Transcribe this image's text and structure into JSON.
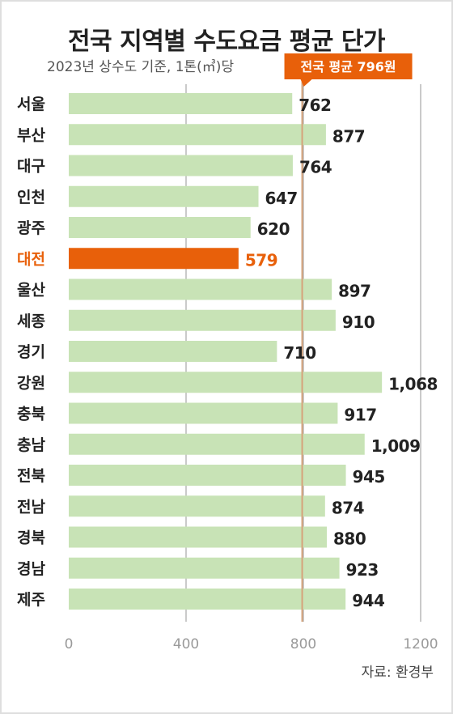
{
  "header": {
    "title": "전국 지역별 수도요금 평균 단가",
    "subtitle": "2023년 상수도 기준, 1톤(㎥)당"
  },
  "footer": {
    "source": "자료: 환경부"
  },
  "colors": {
    "bar": "#c8e3b6",
    "highlight_bar": "#e8600a",
    "highlight_text": "#e8600a",
    "average_line": "#d6a27a",
    "callout_bg": "#e8600a",
    "grid": "#b8b8b8"
  },
  "chart_data": {
    "type": "bar",
    "orientation": "horizontal",
    "title": "전국 지역별 수도요금 평균 단가",
    "subtitle": "2023년 상수도 기준, 1톤(㎥)당",
    "categories": [
      "서울",
      "부산",
      "대구",
      "인천",
      "광주",
      "대전",
      "울산",
      "세종",
      "경기",
      "강원",
      "충북",
      "충남",
      "전북",
      "전남",
      "경북",
      "경남",
      "제주"
    ],
    "values": [
      762,
      877,
      764,
      647,
      620,
      579,
      897,
      910,
      710,
      1068,
      917,
      1009,
      945,
      874,
      880,
      923,
      944
    ],
    "value_labels": [
      "762",
      "877",
      "764",
      "647",
      "620",
      "579",
      "897",
      "910",
      "710",
      "1,068",
      "917",
      "1,009",
      "945",
      "874",
      "880",
      "923",
      "944"
    ],
    "highlight": "대전",
    "average": {
      "value": 796,
      "label": "전국 평균 796원"
    },
    "xlim": [
      0,
      1200
    ],
    "xticks": [
      0,
      400,
      800,
      1200
    ],
    "xtick_labels": [
      "0",
      "400",
      "800",
      "1200"
    ],
    "grid": true
  }
}
